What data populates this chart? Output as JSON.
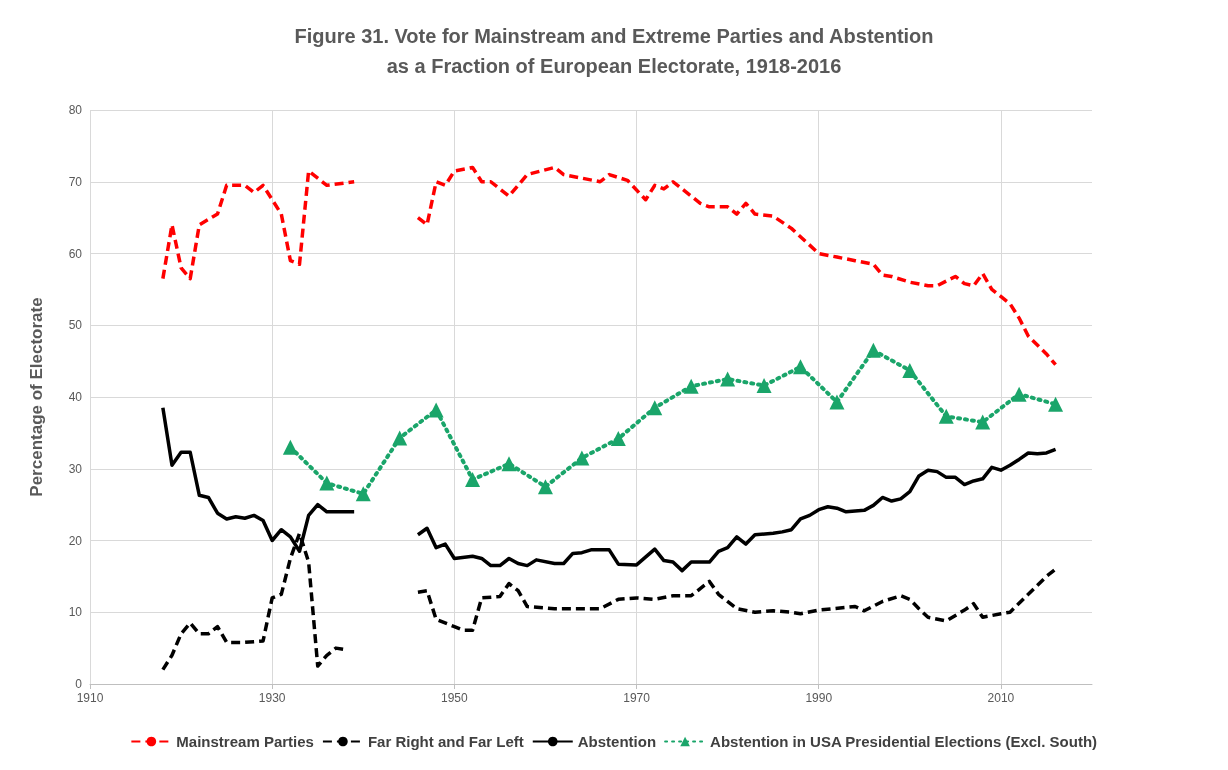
{
  "chart_data": {
    "type": "line",
    "title": "Figure 31. Vote for Mainstream and Extreme Parties and Abstention\nas a Fraction of European Electorate, 1918-2016",
    "ylabel": "Percentage of Electorate",
    "xlim": [
      1910,
      2020
    ],
    "xticks": [
      1910,
      1930,
      1950,
      1970,
      1990,
      2010
    ],
    "ylim": [
      0,
      80
    ],
    "yticks": [
      0,
      10,
      20,
      30,
      40,
      50,
      60,
      70,
      80
    ],
    "grid": true,
    "legend": "bottom",
    "series": [
      {
        "name": "Mainstream Parties",
        "color": "#ff0000",
        "line_style": "dashed",
        "marker": "none",
        "x": [
          1918,
          1919,
          1920,
          1921,
          1922,
          1924,
          1925,
          1927,
          1928,
          1929,
          1931,
          1932,
          1933,
          1934,
          1936,
          1939,
          1942,
          1946,
          1947,
          1948,
          1949,
          1950,
          1952,
          1953,
          1954,
          1956,
          1958,
          1961,
          1962,
          1964,
          1966,
          1967,
          1969,
          1971,
          1972,
          1973,
          1974,
          1977,
          1978,
          1980,
          1981,
          1982,
          1983,
          1985,
          1987,
          1990,
          1992,
          1994,
          1996,
          1997,
          1998,
          2000,
          2002,
          2003,
          2005,
          2006,
          2007,
          2008,
          2009,
          2011,
          2012,
          2013,
          2015,
          2016
        ],
        "values": [
          56.5,
          64,
          58,
          56.5,
          64,
          65.5,
          69.5,
          69.5,
          68.5,
          69.5,
          65.5,
          59,
          58.5,
          71.5,
          69.5,
          70,
          null,
          65,
          64,
          70,
          69.5,
          71.5,
          72,
          70,
          70,
          68,
          71,
          72,
          71,
          70.5,
          70,
          71,
          70.2,
          67.5,
          69.5,
          69,
          70,
          67,
          66.5,
          66.5,
          65.5,
          67,
          65.5,
          65.2,
          63.5,
          60,
          59.5,
          59,
          58.5,
          57,
          56.8,
          56,
          55.5,
          55.5,
          56.8,
          55.8,
          55.5,
          57.2,
          55,
          53,
          51,
          48.5,
          46,
          44.5
        ]
      },
      {
        "name": "Far Right and Far Left",
        "color": "#000000",
        "line_style": "dashed",
        "marker": "none",
        "x": [
          1918,
          1919,
          1920,
          1921,
          1922,
          1923,
          1924,
          1925,
          1927,
          1929,
          1930,
          1931,
          1932,
          1933,
          1934,
          1935,
          1936,
          1937,
          1938,
          1942,
          1946,
          1947,
          1948,
          1950,
          1951,
          1952,
          1953,
          1955,
          1956,
          1957,
          1958,
          1961,
          1963,
          1966,
          1968,
          1970,
          1972,
          1974,
          1976,
          1978,
          1979,
          1981,
          1983,
          1985,
          1987,
          1988,
          1990,
          1994,
          1995,
          1997,
          1999,
          2000,
          2001,
          2002,
          2004,
          2006,
          2007,
          2008,
          2010,
          2011,
          2013,
          2015,
          2016
        ],
        "values": [
          2,
          4,
          7,
          8.5,
          7,
          7,
          8,
          5.8,
          5.8,
          6,
          12,
          12.5,
          17.5,
          21,
          17,
          2.5,
          4,
          5,
          4.8,
          null,
          12.8,
          13,
          9,
          8,
          7.5,
          7.5,
          12,
          12.2,
          14,
          13,
          10.8,
          10.5,
          10.5,
          10.5,
          11.8,
          12,
          11.8,
          12.3,
          12.3,
          14.3,
          12.5,
          10.5,
          10,
          10.2,
          10,
          9.8,
          10.3,
          10.8,
          10.2,
          11.5,
          12.3,
          11.8,
          10.5,
          9.3,
          8.8,
          10.3,
          11.2,
          9.3,
          9.8,
          10,
          12.5,
          15,
          16
        ]
      },
      {
        "name": "Abstention",
        "color": "#000000",
        "line_style": "solid",
        "marker": "none",
        "x": [
          1918,
          1919,
          1920,
          1921,
          1922,
          1923,
          1924,
          1925,
          1926,
          1927,
          1928,
          1929,
          1930,
          1931,
          1932,
          1933,
          1934,
          1935,
          1936,
          1939,
          1942,
          1946,
          1947,
          1948,
          1949,
          1950,
          1952,
          1953,
          1954,
          1955,
          1956,
          1957,
          1958,
          1959,
          1961,
          1962,
          1963,
          1964,
          1965,
          1967,
          1968,
          1970,
          1972,
          1973,
          1974,
          1975,
          1976,
          1978,
          1979,
          1980,
          1981,
          1982,
          1983,
          1985,
          1986,
          1987,
          1988,
          1989,
          1990,
          1991,
          1992,
          1993,
          1995,
          1996,
          1997,
          1998,
          1999,
          2000,
          2001,
          2002,
          2003,
          2004,
          2005,
          2006,
          2007,
          2008,
          2009,
          2010,
          2011,
          2012,
          2013,
          2014,
          2015,
          2016
        ],
        "values": [
          38.5,
          30.5,
          32.3,
          32.3,
          26.3,
          26,
          23.8,
          23,
          23.3,
          23.1,
          23.5,
          22.8,
          20,
          21.5,
          20.5,
          18.5,
          23.5,
          25,
          24,
          24,
          null,
          20.8,
          21.7,
          19,
          19.5,
          17.5,
          17.8,
          17.5,
          16.5,
          16.5,
          17.5,
          16.8,
          16.5,
          17.3,
          16.8,
          16.8,
          18.2,
          18.3,
          18.7,
          18.7,
          16.7,
          16.6,
          18.8,
          17.2,
          17,
          15.8,
          17,
          17,
          18.5,
          19,
          20.5,
          19.5,
          20.8,
          21,
          21.2,
          21.5,
          23,
          23.5,
          24.3,
          24.7,
          24.5,
          24,
          24.2,
          24.9,
          26,
          25.5,
          25.8,
          26.8,
          29,
          29.8,
          29.6,
          28.8,
          28.8,
          27.8,
          28.3,
          28.6,
          30.2,
          29.8,
          30.5,
          31.3,
          32.2,
          32.1,
          32.2,
          32.7
        ]
      },
      {
        "name": "Abstention in USA Presidential Elections (Excl. South)",
        "color": "#1aa56a",
        "line_style": "dotted",
        "marker": "triangle",
        "x": [
          1932,
          1936,
          1940,
          1944,
          1948,
          1952,
          1956,
          1960,
          1964,
          1968,
          1972,
          1976,
          1980,
          1984,
          1988,
          1992,
          1996,
          2000,
          2004,
          2008,
          2012,
          2016
        ],
        "values": [
          33,
          28,
          26.5,
          34.3,
          38.2,
          28.5,
          30.7,
          27.5,
          31.5,
          34.2,
          38.5,
          41.5,
          42.5,
          41.6,
          44.2,
          39.3,
          46.5,
          43.7,
          37.3,
          36.5,
          40.4,
          39
        ]
      }
    ]
  }
}
